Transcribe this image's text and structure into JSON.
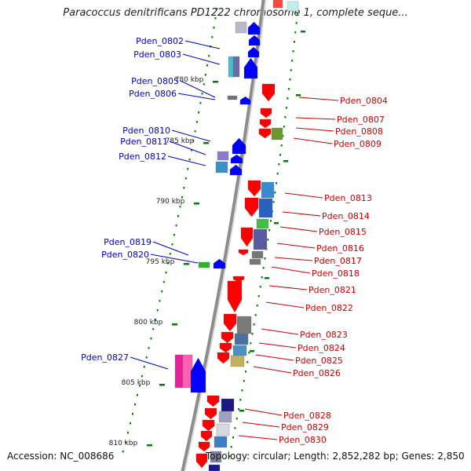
{
  "title": "Paracoccus denitrificans PD1222 chromosome 1, complete seque...",
  "footer": {
    "accession": "Accession: NC_008686",
    "topology": "Topology: circular; Length: 2,852,282 bp; Genes: 2,850"
  },
  "scale_labels": [
    "780 kbp",
    "785 kbp",
    "790 kbp",
    "795 kbp",
    "800 kbp",
    "805 kbp",
    "810 kbp"
  ],
  "genes_left": [
    "Pden_0802",
    "Pden_0803",
    "Pden_0805",
    "Pden_0806",
    "Pden_0810",
    "Pden_0811",
    "Pden_0812",
    "Pden_0819",
    "Pden_0820",
    "Pden_0827"
  ],
  "genes_right": [
    "Pden_0804",
    "Pden_0807",
    "Pden_0808",
    "Pden_0809",
    "Pden_0813",
    "Pden_0814",
    "Pden_0815",
    "Pden_0816",
    "Pden_0817",
    "Pden_0818",
    "Pden_0821",
    "Pden_0822",
    "Pden_0823",
    "Pden_0824",
    "Pden_0825",
    "Pden_0826",
    "Pden_0828",
    "Pden_0829",
    "Pden_0830"
  ],
  "colors": {
    "forward_strand": "#0000ff",
    "reverse_strand": "#ff0000",
    "backbone": "#8c8c8c",
    "tick": "#008000"
  }
}
